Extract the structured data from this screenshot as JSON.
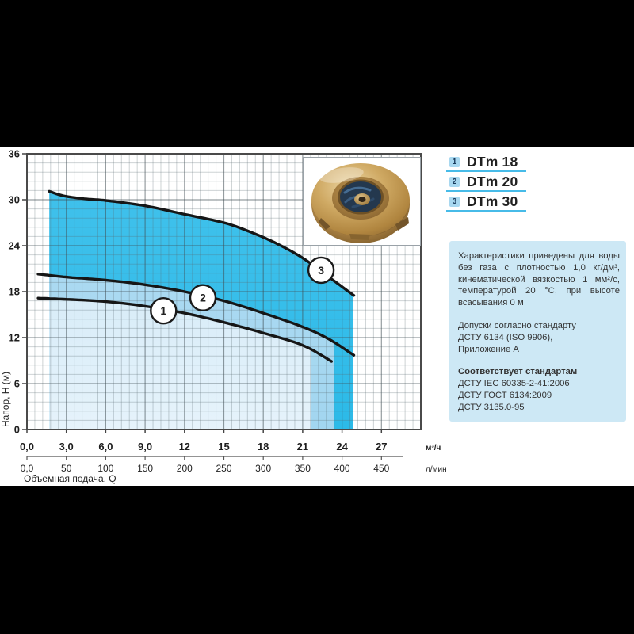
{
  "page": {
    "top_bar_color": "#000000",
    "bottom_bar_color": "#000000",
    "content_bg": "#ffffff"
  },
  "legend": {
    "badge_bg": "#a8d8f0",
    "badge_text_color": "#16395a",
    "underline_color": "#47bbe8",
    "items": [
      {
        "number": "1",
        "model": "DTm 18"
      },
      {
        "number": "2",
        "model": "DTm 20"
      },
      {
        "number": "3",
        "model": "DTm 30"
      }
    ]
  },
  "info_panel": {
    "background": "#cde8f5",
    "paragraph1": "Характеристики приведены для воды без газа с плотностью 1,0 кг/дм³, кинематической вязкостью 1 мм²/с, температурой 20 °C, при высоте всасывания 0 м",
    "tolerances_lines": [
      "Допуски согласно стандарту",
      "ДСТУ 6134 (ISO 9906),",
      "Приложение А"
    ],
    "standards_title": "Соответствует стандартам",
    "standards": [
      "ДСТУ IEC 60335-2-41:2006",
      "ДСТУ ГОСТ 6134:2009",
      "ДСТУ 3135.0-95"
    ]
  },
  "chart_data": {
    "type": "line",
    "ylabel": "Напор, H (м)",
    "xlabel": "Объемная подача, Q",
    "xlim": [
      0,
      30
    ],
    "ylim": [
      0,
      36
    ],
    "y_ticks": [
      0,
      6,
      12,
      18,
      24,
      30,
      36
    ],
    "x_axis_primary": {
      "unit": "м³/ч",
      "tick_values": [
        0,
        3,
        6,
        9,
        12,
        15,
        18,
        21,
        24,
        27
      ],
      "tick_labels": [
        "0,0",
        "3,0",
        "6,0",
        "9,0",
        "12",
        "15",
        "18",
        "21",
        "24",
        "27"
      ]
    },
    "x_axis_secondary": {
      "unit": "л/мин",
      "tick_values": [
        0,
        50,
        100,
        150,
        200,
        250,
        300,
        350,
        400,
        450
      ],
      "tick_labels": [
        "0,0",
        "50",
        "100",
        "150",
        "200",
        "250",
        "300",
        "350",
        "400",
        "450"
      ],
      "m3h_per_unit": 0.06
    },
    "grid": {
      "on": true,
      "x_minor_per_major": 5,
      "y_minor_per_major": 5,
      "x_major_step": 3,
      "y_major_step": 6
    },
    "series": [
      {
        "name": "DTm 18",
        "marker": "1",
        "marker_pos": [
          10.4,
          15.5
        ],
        "line_color": "#161616",
        "fill_range": [
          1.7,
          21.6
        ],
        "fill_colors": [
          "#c9e5f5",
          "#e6f3fb"
        ],
        "points": [
          [
            0.85,
            17.15
          ],
          [
            3,
            17.0
          ],
          [
            6,
            16.7
          ],
          [
            9,
            16.1
          ],
          [
            12,
            15.2
          ],
          [
            15,
            14.0
          ],
          [
            18,
            12.6
          ],
          [
            21,
            11.0
          ],
          [
            23.2,
            8.9
          ]
        ]
      },
      {
        "name": "DTm 20",
        "marker": "2",
        "marker_pos": [
          13.4,
          17.2
        ],
        "line_color": "#161616",
        "fill_range": [
          1.7,
          23.4
        ],
        "fill_colors": [
          "#b2dcf2",
          "#a2d6f0"
        ],
        "points": [
          [
            0.85,
            20.3
          ],
          [
            3,
            19.9
          ],
          [
            6,
            19.5
          ],
          [
            9,
            18.9
          ],
          [
            12,
            18.0
          ],
          [
            15,
            16.8
          ],
          [
            18,
            15.2
          ],
          [
            21,
            13.4
          ],
          [
            23,
            11.8
          ],
          [
            24.9,
            9.7
          ]
        ]
      },
      {
        "name": "DTm 30",
        "marker": "3",
        "marker_pos": [
          22.4,
          20.8
        ],
        "line_color": "#161616",
        "fill_range": [
          1.7,
          24.85
        ],
        "fill_colors": [
          "#43c2ec",
          "#2cbae8"
        ],
        "points": [
          [
            1.7,
            31.1
          ],
          [
            2.8,
            30.5
          ],
          [
            4.5,
            30.1
          ],
          [
            6,
            29.9
          ],
          [
            9,
            29.2
          ],
          [
            12,
            28.1
          ],
          [
            15,
            27.0
          ],
          [
            17,
            25.8
          ],
          [
            19,
            24.3
          ],
          [
            21,
            22.4
          ],
          [
            23,
            19.9
          ],
          [
            24.9,
            17.5
          ]
        ]
      }
    ]
  }
}
